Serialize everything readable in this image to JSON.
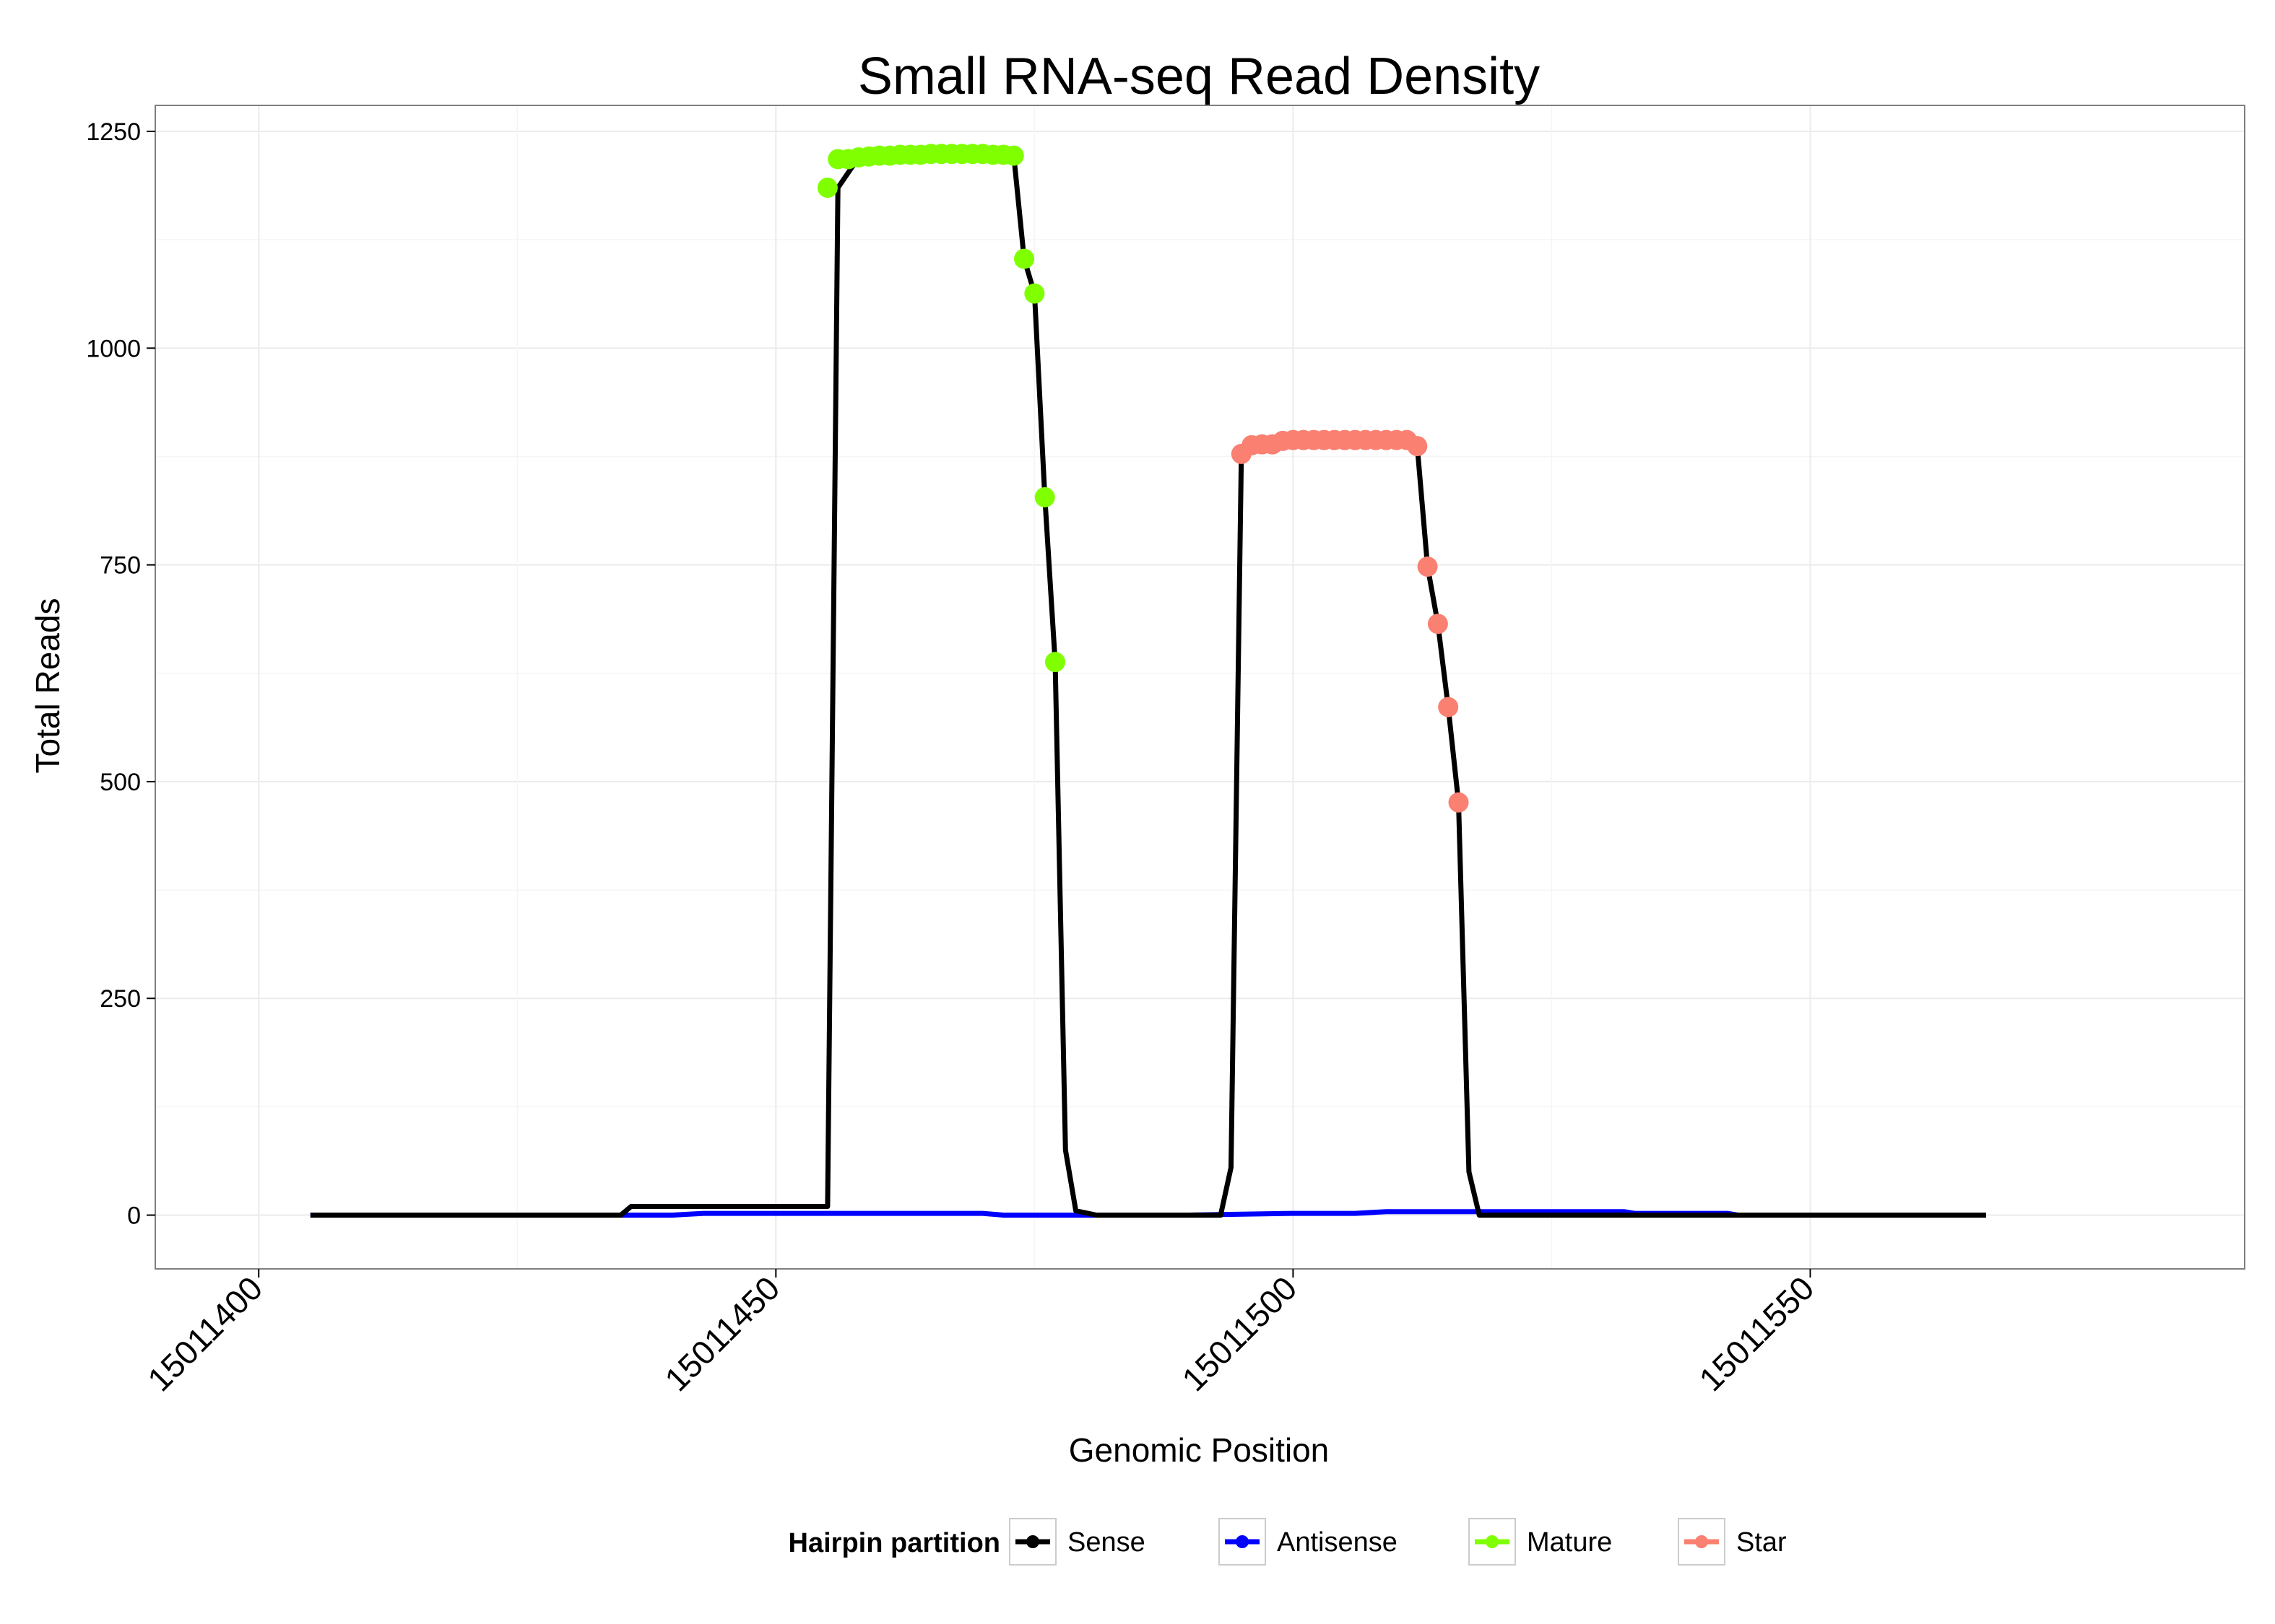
{
  "chart_data": {
    "type": "line",
    "title": "Small RNA-seq Read Density",
    "xlabel": "Genomic Position",
    "ylabel": "Total Reads",
    "xlim": [
      15011390,
      15011592
    ],
    "ylim": [
      -62,
      1280
    ],
    "x_ticks": [
      15011400,
      15011450,
      15011500,
      15011550
    ],
    "x_tick_labels": [
      "15011400",
      "15011450",
      "15011500",
      "15011550"
    ],
    "y_ticks": [
      0,
      250,
      500,
      750,
      1000,
      1250
    ],
    "y_tick_labels": [
      "0",
      "250",
      "500",
      "750",
      "1000",
      "1250"
    ],
    "grid": true,
    "legend_position": "bottom",
    "legend": {
      "title": "Hairpin partition",
      "entries": [
        {
          "name": "Sense",
          "color": "#000000"
        },
        {
          "name": "Antisense",
          "color": "#0000ff"
        },
        {
          "name": "Mature",
          "color": "#7fff00"
        },
        {
          "name": "Star",
          "color": "#fa8072"
        }
      ]
    },
    "series": [
      {
        "name": "Sense",
        "color": "#000000",
        "x": [
          15011405,
          15011435,
          15011436,
          15011455,
          15011456,
          15011458,
          15011460,
          15011465,
          15011470,
          15011473,
          15011474,
          15011475,
          15011476,
          15011477,
          15011478,
          15011479,
          15011481,
          15011491,
          15011493,
          15011494,
          15011495,
          15011496,
          15011500,
          15011505,
          15011510,
          15011512,
          15011513,
          15011514,
          15011515,
          15011516,
          15011517,
          15011518,
          15011567
        ],
        "y": [
          0,
          0,
          10,
          10,
          1185,
          1220,
          1222,
          1224,
          1224,
          1222,
          1103,
          1063,
          828,
          638,
          75,
          5,
          0,
          0,
          0,
          55,
          878,
          888,
          894,
          894,
          894,
          887,
          748,
          682,
          586,
          476,
          50,
          0,
          0
        ]
      },
      {
        "name": "Antisense",
        "color": "#0000ff",
        "x": [
          15011405,
          15011440,
          15011443,
          15011470,
          15011472,
          15011490,
          15011500,
          15011506,
          15011509,
          15011532,
          15011533,
          15011542,
          15011543,
          15011567
        ],
        "y": [
          0,
          0,
          2,
          2,
          0,
          0,
          2,
          2,
          4,
          4,
          2,
          2,
          0,
          0
        ]
      },
      {
        "name": "Mature",
        "color": "#7fff00",
        "x": [
          15011455,
          15011456,
          15011457,
          15011458,
          15011459,
          15011460,
          15011461,
          15011462,
          15011463,
          15011464,
          15011465,
          15011466,
          15011467,
          15011468,
          15011469,
          15011470,
          15011471,
          15011472,
          15011473,
          15011474,
          15011475,
          15011476,
          15011477
        ],
        "y": [
          1185,
          1218,
          1218,
          1220,
          1221,
          1222,
          1222,
          1223,
          1223,
          1223,
          1224,
          1224,
          1224,
          1224,
          1224,
          1224,
          1223,
          1223,
          1222,
          1103,
          1063,
          828,
          638
        ]
      },
      {
        "name": "Star",
        "color": "#fa8072",
        "x": [
          15011495,
          15011496,
          15011497,
          15011498,
          15011499,
          15011500,
          15011501,
          15011502,
          15011503,
          15011504,
          15011505,
          15011506,
          15011507,
          15011508,
          15011509,
          15011510,
          15011511,
          15011512,
          15011513,
          15011514,
          15011515,
          15011516
        ],
        "y": [
          878,
          888,
          889,
          889,
          893,
          894,
          894,
          894,
          894,
          894,
          894,
          894,
          894,
          894,
          894,
          894,
          894,
          887,
          748,
          682,
          586,
          476
        ]
      }
    ]
  }
}
